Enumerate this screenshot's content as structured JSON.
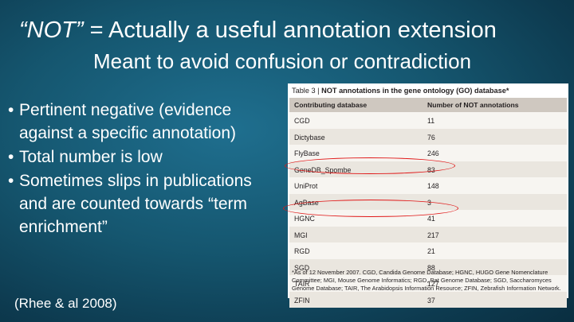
{
  "title": {
    "emphasis": "“NOT”",
    "rest": " = Actually a useful annotation extension"
  },
  "subtitle": "Meant to avoid confusion or contradiction",
  "bullets": [
    "Pertinent negative (evidence against a specific annotation)",
    "Total number is low",
    "Sometimes slips in publications and are counted towards “term enrichment”"
  ],
  "citation": "(Rhee & al 2008)",
  "table": {
    "caption_prefix": "Table 3 | ",
    "caption_bold": "NOT annotations in the gene ontology (GO) database*",
    "headers": [
      "Contributing database",
      "Number of NOT annotations"
    ],
    "rows": [
      {
        "db": "CGD",
        "count": "11"
      },
      {
        "db": "Dictybase",
        "count": "76"
      },
      {
        "db": "FlyBase",
        "count": "246"
      },
      {
        "db": "GeneDB_Spombe",
        "count": "83"
      },
      {
        "db": "UniProt",
        "count": "148"
      },
      {
        "db": "AgBase",
        "count": "3"
      },
      {
        "db": "HGNC",
        "count": "41"
      },
      {
        "db": "MGI",
        "count": "217"
      },
      {
        "db": "RGD",
        "count": "21"
      },
      {
        "db": "SGD",
        "count": "88"
      },
      {
        "db": "TAIR",
        "count": "127"
      },
      {
        "db": "ZFIN",
        "count": "37"
      }
    ],
    "footnote": "*As of 12 November 2007. CGD, Candida Genome Database; HGNC, HUGO Gene Nomenclature Committee; MGI, Mouse Genome Informatics; RGD, Rat Genome Database; SGD, Saccharomyces Genome Database; TAIR, The Arabidopsis Information Resource; ZFIN, Zebrafish Information Network.",
    "highlight_color": "#e01818"
  }
}
